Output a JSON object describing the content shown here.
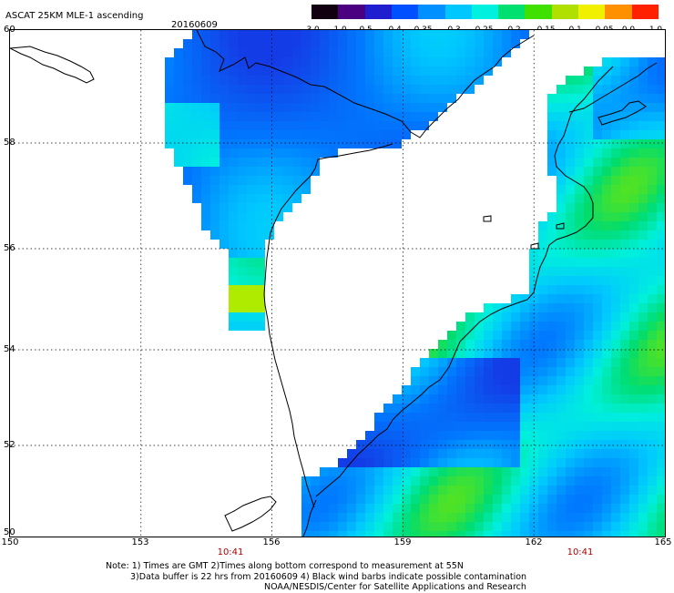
{
  "header": {
    "title": "ASCAT 25KM MLE-1 ascending",
    "date": "20160609"
  },
  "colorbar": {
    "labels": [
      "-3.0",
      "-1.0",
      "-0.5",
      "-0.4",
      "-0.35",
      "-0.3",
      "-0.25",
      "-0.2",
      "-0.15",
      "-0.1",
      "-0.05",
      "0.0",
      "1.0"
    ],
    "colors": [
      "#100010",
      "#4b0082",
      "#1f1fd0",
      "#0050ff",
      "#0090ff",
      "#00c8ff",
      "#00f0e0",
      "#00e070",
      "#40e000",
      "#b0e000",
      "#f0f000",
      "#ff9000",
      "#ff2000"
    ]
  },
  "map": {
    "lat_labels": [
      "60",
      "58",
      "56",
      "54",
      "52",
      "50"
    ],
    "lon_labels": [
      "150",
      "153",
      "156",
      "159",
      "162",
      "165"
    ],
    "time_labels": [
      "10:41",
      "10:41"
    ]
  },
  "notes": {
    "line1": "Note: 1) Times are GMT 2)Times along bottom correspond to measurement at 55N",
    "line2": "3)Data buffer is 22 hrs from 20160609 4) Black wind barbs indicate possible contamination",
    "line3": "NOAA/NESDIS/Center for Satellite Applications and Research"
  }
}
